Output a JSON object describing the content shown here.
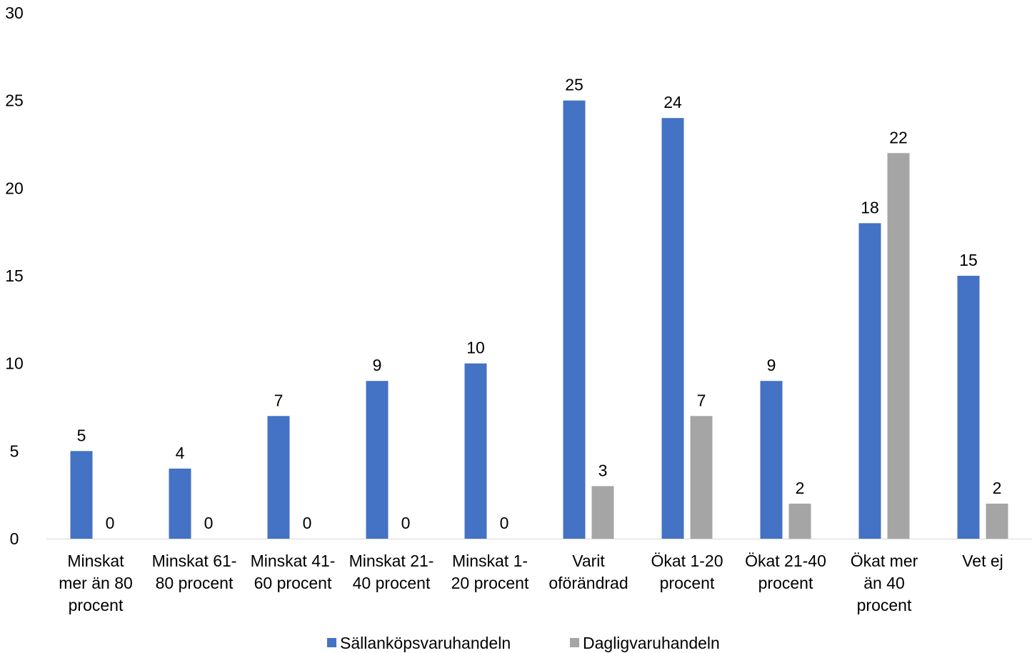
{
  "chart_data": {
    "type": "bar",
    "categories": [
      [
        "Minskat",
        "mer än 80",
        "procent"
      ],
      [
        "Minskat 61-",
        "80 procent"
      ],
      [
        "Minskat 41-",
        "60 procent"
      ],
      [
        "Minskat 21-",
        "40 procent"
      ],
      [
        "Minskat 1-",
        "20 procent"
      ],
      [
        "Varit",
        "oförändrad"
      ],
      [
        "Ökat 1-20",
        "procent"
      ],
      [
        "Ökat 21-40",
        "procent"
      ],
      [
        "Ökat mer",
        "än 40",
        "procent"
      ],
      [
        "Vet ej"
      ]
    ],
    "series": [
      {
        "name": "Sällanköpsvaruhandeln",
        "color": "#4472C4",
        "values": [
          5,
          4,
          7,
          9,
          10,
          25,
          24,
          9,
          18,
          15
        ]
      },
      {
        "name": "Dagligvaruhandeln",
        "color": "#A5A5A5",
        "values": [
          0,
          0,
          0,
          0,
          0,
          3,
          7,
          2,
          22,
          2
        ]
      }
    ],
    "ylim": [
      0,
      30
    ],
    "yticks": [
      0,
      5,
      10,
      15,
      20,
      25,
      30
    ],
    "grid": false,
    "data_labels": true,
    "legend_position": "bottom",
    "title": "",
    "xlabel": "",
    "ylabel": ""
  }
}
